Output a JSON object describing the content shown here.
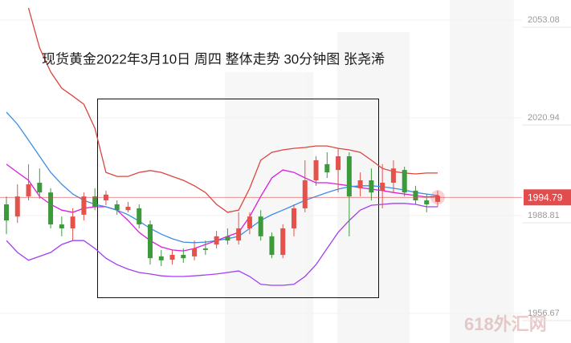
{
  "chart_data": {
    "type": "candlestick",
    "title": "现货黄金2022年3月10日  周四  整体走势  30分钟图  张尧浠",
    "watermark": "618外汇网",
    "open": [
      1992.5,
      1988.5,
      1995.1,
      1999.6,
      1996.4,
      1985.9,
      1984.6,
      1989.1,
      1995.1,
      1993.8,
      1992.5,
      1990.6,
      1991.2,
      1985.9,
      1975.4,
      1974.3,
      1975.9,
      1975.4,
      1978.0,
      1979.3,
      1982.0,
      1980.6,
      1984.6,
      1988.5,
      1982.0,
      1975.9,
      1984.6,
      1991.2,
      2000.4,
      2005.7,
      2003.8,
      2008.3,
      1997.8,
      2000.4,
      1997.0,
      1999.6,
      2003.8,
      1997.0,
      1993.8,
      1993.3
    ],
    "high": [
      1995.1,
      1999.1,
      2005.7,
      2004.3,
      1997.8,
      1988.5,
      1991.2,
      1996.4,
      1997.8,
      1997.0,
      1993.8,
      1993.3,
      1992.5,
      1987.2,
      1977.5,
      1977.5,
      1978.0,
      1980.6,
      1980.6,
      1983.8,
      1984.6,
      1989.9,
      1989.9,
      1990.6,
      1983.3,
      1985.9,
      1992.5,
      2007.0,
      2008.3,
      2009.6,
      2010.9,
      2009.6,
      2003.0,
      2004.3,
      2005.7,
      2007.0,
      2004.9,
      1998.6,
      1995.9,
      1997.0
    ],
    "low": [
      1982.7,
      1986.4,
      1993.8,
      1994.3,
      1984.6,
      1982.0,
      1980.6,
      1987.2,
      1990.6,
      1992.2,
      1989.1,
      1989.9,
      1984.6,
      1972.7,
      1972.2,
      1972.7,
      1973.3,
      1974.1,
      1975.9,
      1978.0,
      1979.3,
      1979.3,
      1982.7,
      1980.6,
      1974.8,
      1974.8,
      1982.0,
      1989.9,
      1998.6,
      2001.2,
      1996.4,
      1982.0,
      1995.1,
      1993.8,
      1991.2,
      1996.4,
      1995.1,
      1992.5,
      1989.9,
      1991.7
    ],
    "close": [
      1987.2,
      1995.1,
      1999.1,
      1996.4,
      1985.9,
      1984.6,
      1988.5,
      1995.1,
      1991.7,
      1995.7,
      1990.6,
      1991.7,
      1985.9,
      1974.8,
      1974.1,
      1975.9,
      1974.8,
      1978.0,
      1977.5,
      1982.0,
      1980.6,
      1984.6,
      1988.5,
      1982.0,
      1975.9,
      1984.6,
      1991.2,
      2000.4,
      2007.0,
      2003.0,
      2008.3,
      1995.1,
      2000.4,
      1996.4,
      1999.6,
      2004.3,
      1996.4,
      1993.8,
      1992.5,
      1995.1
    ],
    "up_color": "#e5524c",
    "down_color": "#3c9a3c",
    "lines": [
      {
        "color": "#d9463f",
        "values": [
          null,
          null,
          2057.0,
          2043.9,
          2036.0,
          2030.7,
          2028.1,
          2025.4,
          2017.5,
          2003.0,
          2001.7,
          2001.7,
          2003.0,
          2003.6,
          2003.0,
          2001.7,
          2000.4,
          1998.6,
          1996.4,
          1992.5,
          1989.9,
          1990.6,
          1997.8,
          2007.0,
          2009.6,
          2010.4,
          2010.9,
          2011.2,
          2011.7,
          2011.7,
          2010.9,
          2010.4,
          2009.6,
          2007.0,
          2004.3,
          2003.3,
          2002.8,
          2002.5,
          2002.8,
          2002.8
        ]
      },
      {
        "color": "#a13ff0",
        "values": [
          1980.6,
          1976.7,
          1974.1,
          1975.4,
          1976.7,
          1979.3,
          1980.6,
          1980.6,
          1978.0,
          1974.8,
          1972.7,
          1971.2,
          1970.1,
          1969.6,
          1969.0,
          1968.8,
          1968.8,
          1969.0,
          1969.3,
          1969.6,
          1970.1,
          1970.6,
          1968.8,
          1966.2,
          1965.9,
          1965.9,
          1966.2,
          1968.8,
          1972.7,
          1978.0,
          1983.3,
          1987.2,
          1990.6,
          1992.2,
          1992.5,
          1992.8,
          1992.8,
          1992.5,
          1991.7,
          1991.7
        ]
      },
      {
        "color": "#d81ed8",
        "values": [
          2005.7,
          2003.0,
          2000.4,
          1995.1,
          1992.5,
          1990.6,
          1989.9,
          1991.2,
          1991.7,
          1991.7,
          1990.6,
          1987.2,
          1983.3,
          1980.6,
          1978.5,
          1977.5,
          1977.2,
          1978.0,
          1979.3,
          1980.6,
          1982.0,
          1983.3,
          1988.5,
          1995.1,
          2001.2,
          2003.8,
          2003.0,
          2001.2,
          1999.6,
          1999.6,
          1999.1,
          1998.6,
          1998.0,
          1997.5,
          1997.0,
          1996.4,
          1995.9,
          1995.4,
          1994.9,
          1995.1
        ]
      },
      {
        "color": "#3b8de6",
        "values": [
          2022.8,
          2018.8,
          2013.6,
          2008.3,
          2003.0,
          1999.1,
          1995.9,
          1993.8,
          1992.5,
          1991.7,
          1990.6,
          1989.1,
          1987.0,
          1984.6,
          1982.7,
          1981.2,
          1980.1,
          1979.9,
          1980.1,
          1980.6,
          1981.2,
          1982.0,
          1984.6,
          1987.2,
          1989.1,
          1990.6,
          1992.2,
          1993.8,
          1995.1,
          1996.4,
          1997.5,
          1998.3,
          1998.6,
          1998.6,
          1998.3,
          1997.8,
          1997.2,
          1996.4,
          1995.9,
          1995.4
        ]
      }
    ],
    "price_line": 1994.79,
    "price_color": "#e24c4c",
    "ylim": [
      1946.93,
      2059.66
    ],
    "yticks": [
      2053.08,
      2020.94,
      1988.81,
      1956.67
    ],
    "grid": true
  }
}
